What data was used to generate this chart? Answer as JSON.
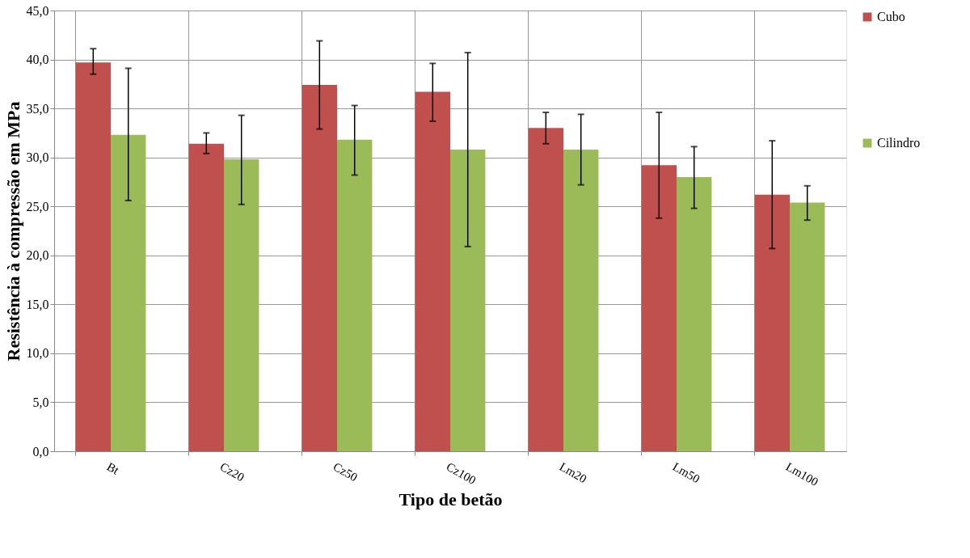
{
  "chart_data": {
    "type": "bar",
    "xlabel": "Tipo de betão",
    "ylabel": "Resistência à compressão em MPa",
    "categories": [
      "Bt",
      "Cz20",
      "Cz50",
      "Cz100",
      "Lm20",
      "Lm50",
      "Lm100"
    ],
    "series": [
      {
        "name": "Cubo",
        "color": "#c0504d",
        "values": [
          39.7,
          31.4,
          37.4,
          36.7,
          33.0,
          29.2,
          26.2
        ],
        "errors": [
          [
            38.5,
            41.1
          ],
          [
            30.4,
            32.5
          ],
          [
            32.9,
            41.9
          ],
          [
            33.7,
            39.6
          ],
          [
            31.4,
            34.6
          ],
          [
            23.8,
            34.6
          ],
          [
            20.7,
            31.7
          ]
        ]
      },
      {
        "name": "Cilindro",
        "color": "#9bbb59",
        "values": [
          32.3,
          29.8,
          31.8,
          30.8,
          30.8,
          28.0,
          25.4
        ],
        "errors": [
          [
            25.6,
            39.1
          ],
          [
            25.2,
            34.3
          ],
          [
            28.2,
            35.3
          ],
          [
            20.9,
            40.7
          ],
          [
            27.2,
            34.4
          ],
          [
            24.8,
            31.1
          ],
          [
            23.6,
            27.1
          ]
        ]
      }
    ],
    "ylim": [
      0,
      45
    ],
    "yticks": [
      {
        "value": 0,
        "label": "0,0"
      },
      {
        "value": 5,
        "label": "5,0"
      },
      {
        "value": 10,
        "label": "10,0"
      },
      {
        "value": 15,
        "label": "15,0"
      },
      {
        "value": 20,
        "label": "20,0"
      },
      {
        "value": 25,
        "label": "25,0"
      },
      {
        "value": 30,
        "label": "30,0"
      },
      {
        "value": 35,
        "label": "35,0"
      },
      {
        "value": 40,
        "label": "40,0"
      },
      {
        "value": 45,
        "label": "45,0"
      }
    ],
    "grid": true,
    "legend": "right"
  }
}
